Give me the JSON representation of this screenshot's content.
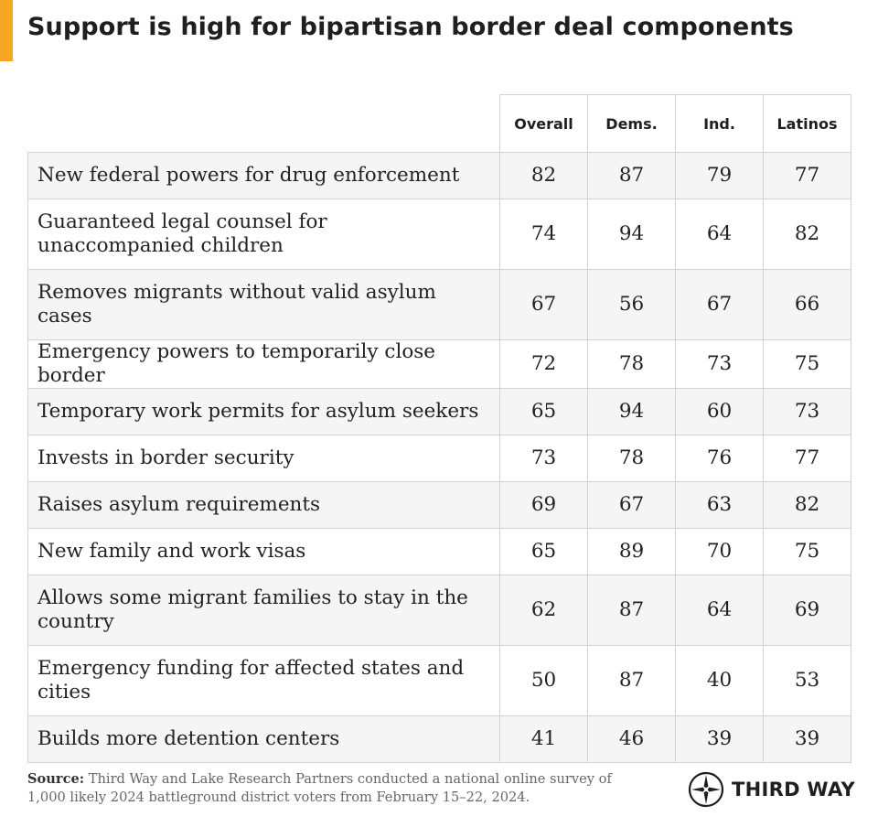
{
  "title": "Support is high for bipartisan border deal components",
  "colors": {
    "accent": "#F5A623",
    "row_shade": "#f5f5f5",
    "grid_line": "#d2d2d2"
  },
  "chart_data": {
    "type": "table",
    "columns": [
      "Overall",
      "Dems.",
      "Ind.",
      "Latinos"
    ],
    "rows": [
      {
        "label": "New federal powers for drug enforcement",
        "values": [
          82,
          87,
          79,
          77
        ]
      },
      {
        "label": "Guaranteed legal counsel for unaccompanied children",
        "values": [
          74,
          94,
          64,
          82
        ]
      },
      {
        "label": "Removes migrants without valid asylum cases",
        "values": [
          67,
          56,
          67,
          66
        ]
      },
      {
        "label": "Emergency powers to temporarily close border",
        "values": [
          72,
          78,
          73,
          75
        ]
      },
      {
        "label": "Temporary work permits for asylum seekers",
        "values": [
          65,
          94,
          60,
          73
        ]
      },
      {
        "label": "Invests in border security",
        "values": [
          73,
          78,
          76,
          77
        ]
      },
      {
        "label": "Raises asylum requirements",
        "values": [
          69,
          67,
          63,
          82
        ]
      },
      {
        "label": "New family and work visas",
        "values": [
          65,
          89,
          70,
          75
        ]
      },
      {
        "label": "Allows some migrant families to stay in the country",
        "values": [
          62,
          87,
          64,
          69
        ]
      },
      {
        "label": "Emergency funding for affected states and cities",
        "values": [
          50,
          87,
          40,
          53
        ]
      },
      {
        "label": "Builds more detention centers",
        "values": [
          41,
          46,
          39,
          39
        ]
      }
    ]
  },
  "source": {
    "label": "Source:",
    "text": "Third Way and Lake Research Partners conducted a national online survey of 1,000 likely 2024 battleground district voters from February 15–22, 2024."
  },
  "logo": {
    "text": "THIRD WAY",
    "icon": "compass-star-icon"
  }
}
